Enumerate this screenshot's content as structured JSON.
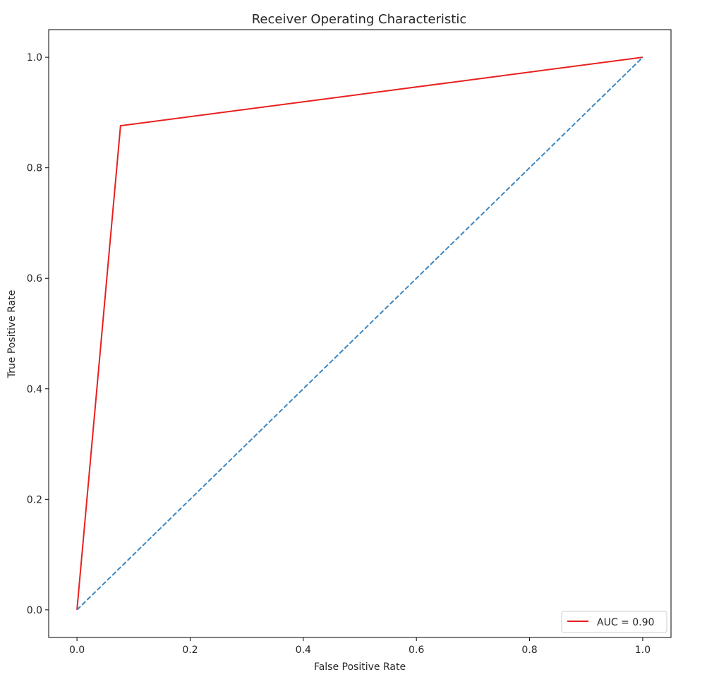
{
  "chart_data": {
    "type": "line",
    "title": "Receiver Operating Characteristic",
    "xlabel": "False Positive Rate",
    "ylabel": "True Positive Rate",
    "xlim": [
      -0.05,
      1.05
    ],
    "ylim": [
      -0.05,
      1.05
    ],
    "xticks": [
      0.0,
      0.2,
      0.4,
      0.6,
      0.8,
      1.0
    ],
    "yticks": [
      0.0,
      0.2,
      0.4,
      0.6,
      0.8,
      1.0
    ],
    "xtick_labels": [
      "0.0",
      "0.2",
      "0.4",
      "0.6",
      "0.8",
      "1.0"
    ],
    "ytick_labels": [
      "0.0",
      "0.2",
      "0.4",
      "0.6",
      "0.8",
      "1.0"
    ],
    "grid": false,
    "legend_placement": "lower-right",
    "series": [
      {
        "name": "AUC = 0.90",
        "x": [
          0.0,
          0.077,
          1.0
        ],
        "y": [
          0.0,
          0.876,
          1.0
        ],
        "color": "#e8201f",
        "style": "solid"
      },
      {
        "x": [
          0.0,
          1.0
        ],
        "y": [
          0.0,
          1.0
        ],
        "color": "#3b86c1",
        "style": "dashed"
      }
    ]
  }
}
